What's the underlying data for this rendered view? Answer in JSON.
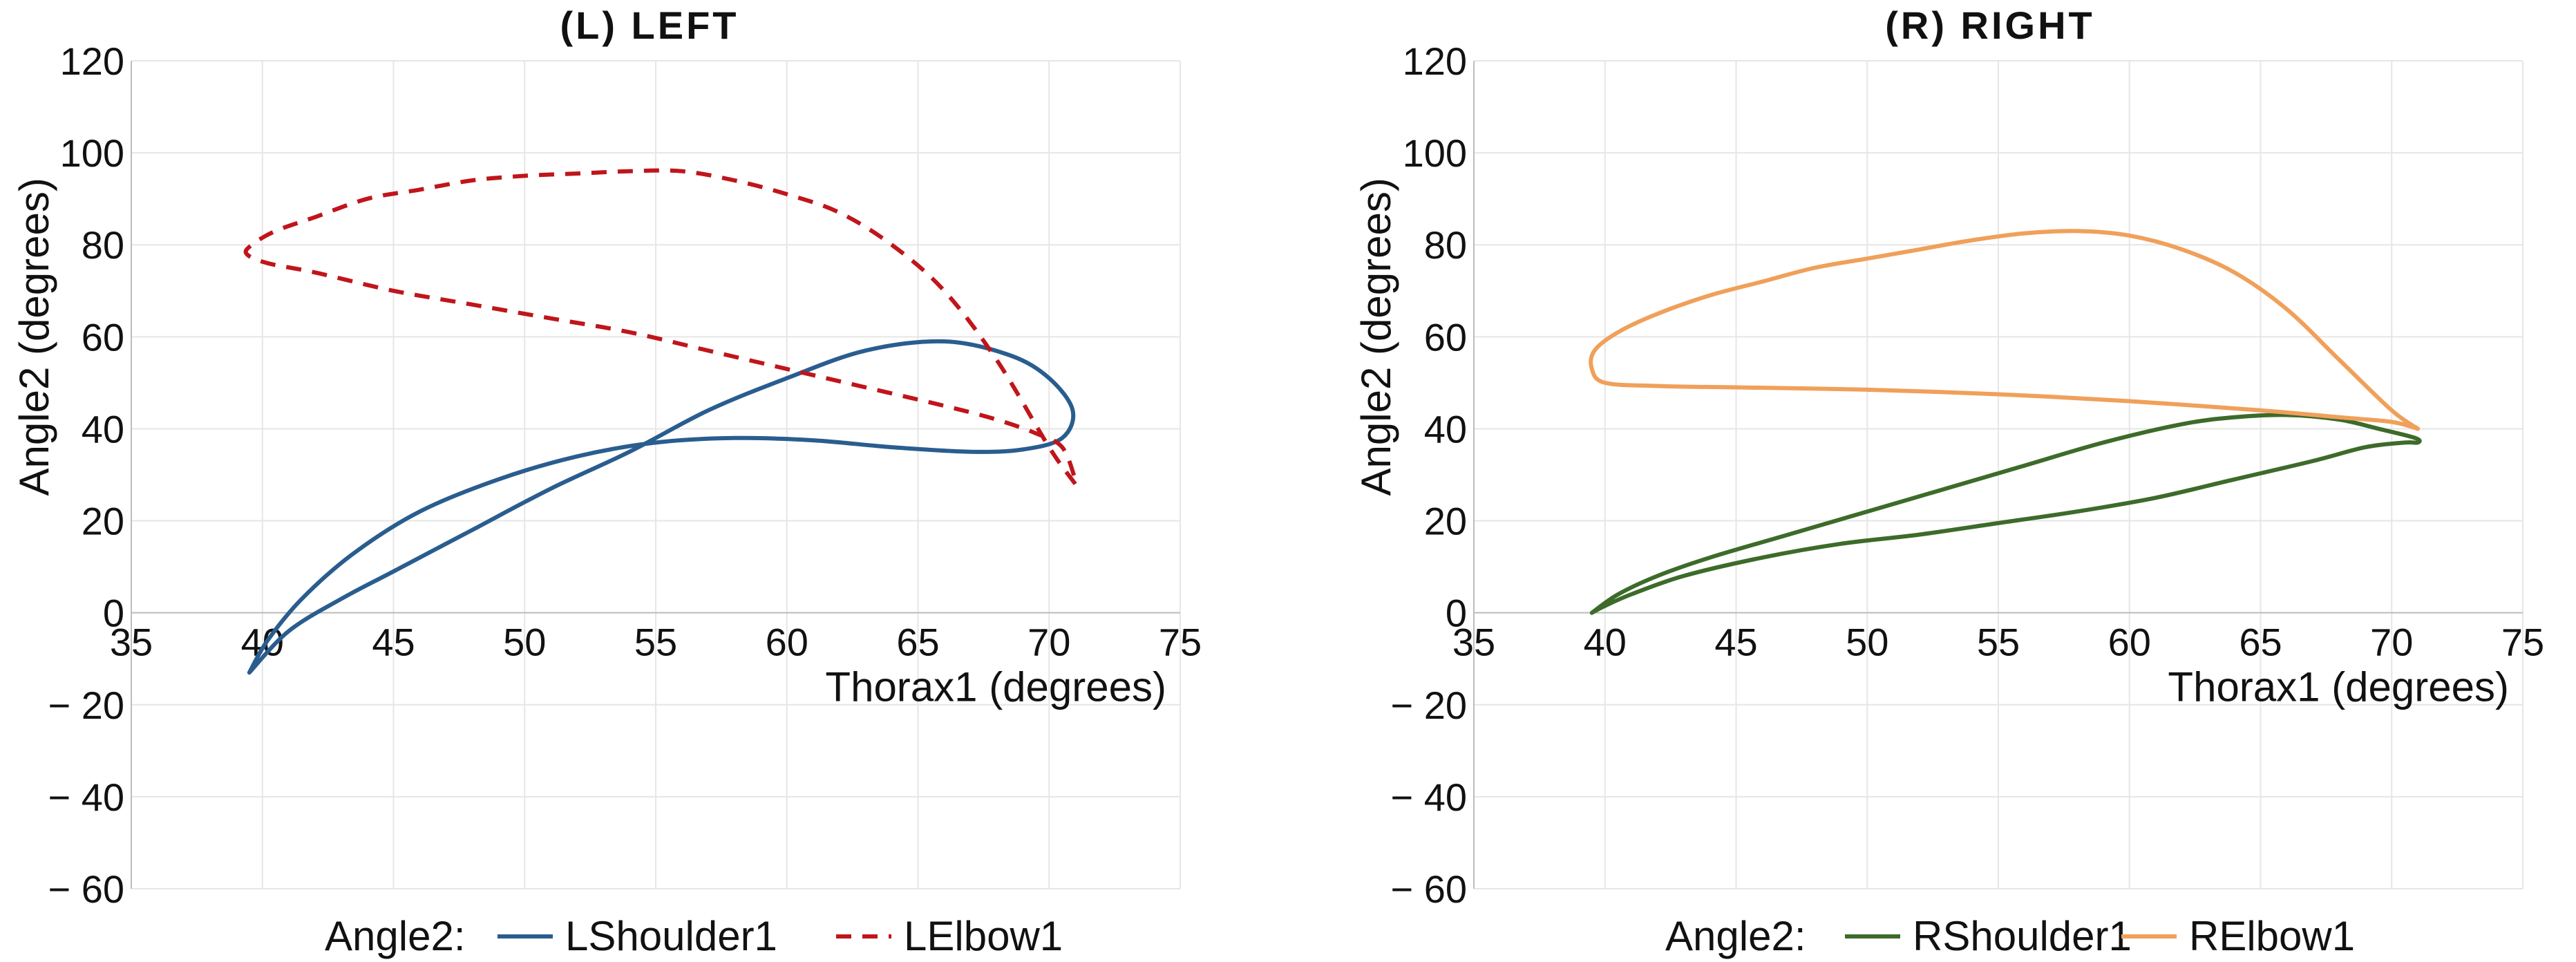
{
  "chart_data": [
    {
      "type": "line",
      "title": "(L) LEFT",
      "xlabel": "Thorax1 (degrees)",
      "ylabel": "Angle2 (degrees)",
      "xlim": [
        35,
        75
      ],
      "ylim": [
        -60,
        120
      ],
      "x_ticks": [
        "35",
        "40",
        "45",
        "50",
        "55",
        "60",
        "65",
        "70",
        "75"
      ],
      "y_ticks": [
        "120",
        "100",
        "80",
        "60",
        "40",
        "20",
        "0",
        "− 20",
        "− 40",
        "− 60"
      ],
      "grid": true,
      "legend": {
        "title": "Angle2:",
        "placement": "bottom"
      },
      "series": [
        {
          "name": "LShoulder1",
          "color": "#2a5d8f",
          "dash": "solid",
          "x": [
            39.5,
            41,
            43,
            45,
            48,
            51,
            54,
            57,
            60,
            63,
            66,
            68.5,
            70,
            70.9,
            70.5,
            69,
            67,
            64,
            61,
            58,
            55,
            52,
            49,
            46,
            43.5,
            41.5,
            40.2,
            39.5
          ],
          "y": [
            -13,
            -4,
            3,
            9,
            18,
            27,
            35,
            44,
            51,
            57,
            59,
            56,
            51,
            44,
            38,
            35.5,
            35,
            36,
            37.5,
            38,
            37,
            34,
            29,
            22,
            13,
            3,
            -6,
            -13
          ]
        },
        {
          "name": "LElbow1",
          "color": "#c0151b",
          "dash": "dashed",
          "x": [
            71,
            70,
            68,
            66,
            64,
            62,
            60,
            58,
            56,
            54,
            52,
            50,
            48,
            46,
            44,
            42,
            40.5,
            39.6,
            39.4,
            40.2,
            42,
            45,
            48,
            51,
            54,
            57,
            60,
            63,
            66,
            68,
            69.5,
            70.5,
            71
          ],
          "y": [
            28,
            36,
            55,
            70,
            80,
            87,
            91,
            94,
            96,
            96,
            95.5,
            95,
            94,
            92,
            90,
            86,
            83,
            80,
            78,
            76,
            74,
            70,
            67,
            64,
            61,
            57,
            53,
            49,
            45,
            42,
            39,
            36,
            29
          ]
        }
      ]
    },
    {
      "type": "line",
      "title": "(R) RIGHT",
      "xlabel": "Thorax1 (degrees)",
      "ylabel": "Angle2 (degrees)",
      "xlim": [
        35,
        75
      ],
      "ylim": [
        -60,
        120
      ],
      "x_ticks": [
        "35",
        "40",
        "45",
        "50",
        "55",
        "60",
        "65",
        "70",
        "75"
      ],
      "y_ticks": [
        "120",
        "100",
        "80",
        "60",
        "40",
        "20",
        "0",
        "− 20",
        "− 40",
        "− 60"
      ],
      "grid": true,
      "legend": {
        "title": "Angle2:",
        "placement": "bottom"
      },
      "series": [
        {
          "name": "RShoulder1",
          "color": "#3d6b2a",
          "dash": "solid",
          "x": [
            39.5,
            40.5,
            42,
            44,
            47,
            50,
            53,
            56,
            59,
            62,
            64,
            66,
            68,
            69.5,
            70.9,
            71,
            70.5,
            69,
            67,
            64,
            61,
            58,
            55,
            52,
            49,
            46,
            43,
            41,
            40,
            39.5
          ],
          "y": [
            0,
            4,
            8,
            12,
            17,
            22,
            27,
            32,
            37,
            41,
            42.5,
            43,
            42,
            40,
            38,
            37,
            37,
            36,
            33,
            29,
            25,
            22,
            19.5,
            17,
            15,
            12,
            8,
            4,
            1.5,
            0
          ]
        },
        {
          "name": "RElbow1",
          "color": "#f0a05a",
          "dash": "solid",
          "x": [
            71,
            70,
            68,
            66,
            64,
            62,
            60,
            58,
            56,
            54,
            52,
            50,
            48,
            46,
            44,
            42,
            40.5,
            39.6,
            39.5,
            40,
            42,
            45,
            50,
            55,
            60,
            65,
            68,
            70,
            71
          ],
          "y": [
            40,
            44,
            55,
            66,
            74,
            79,
            82,
            83,
            82.5,
            81,
            79,
            77,
            75,
            72,
            69,
            65,
            61,
            57,
            53,
            50,
            49.3,
            49,
            48.5,
            47.5,
            46,
            44,
            42.5,
            41.5,
            40
          ]
        }
      ]
    }
  ]
}
